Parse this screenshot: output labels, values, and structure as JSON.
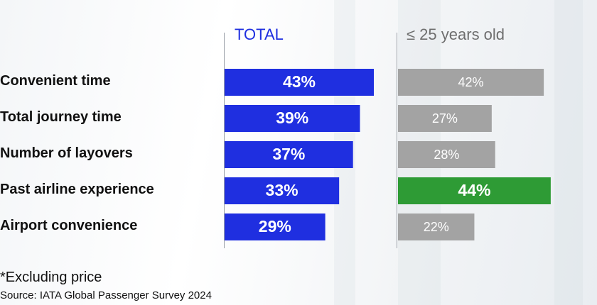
{
  "chart_data": {
    "type": "bar",
    "orientation": "horizontal",
    "categories": [
      "Convenient time",
      "Total journey time",
      "Number of layovers",
      "Past airline experience",
      "Airport convenience"
    ],
    "series": [
      {
        "name": "TOTAL",
        "values": [
          43,
          39,
          37,
          33,
          29
        ],
        "labels": [
          "43%",
          "39%",
          "37%",
          "33%",
          "29%"
        ],
        "color": "#1f2fe0"
      },
      {
        "name": "≤ 25 years old",
        "values": [
          42,
          27,
          28,
          44,
          22
        ],
        "labels": [
          "42%",
          "27%",
          "28%",
          "44%",
          "22%"
        ],
        "color": "#a3a3a3",
        "highlight_color": "#2e9b35",
        "highlight_index": 3
      }
    ]
  },
  "footnote": "*Excluding price",
  "source": "Source: IATA Global Passenger Survey 2024"
}
